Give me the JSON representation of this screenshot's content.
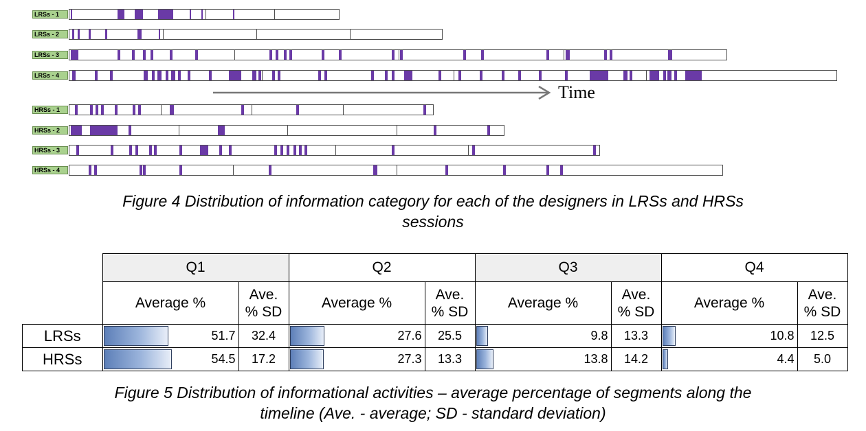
{
  "figure4": {
    "rows": [
      {
        "label": "LRSs - 1",
        "length": 394,
        "dividers": [
          70,
          102,
          198,
          298
        ],
        "marks": [
          [
            2,
            2
          ],
          [
            70,
            10
          ],
          [
            95,
            12
          ],
          [
            129,
            22
          ],
          [
            175,
            2
          ],
          [
            192,
            2
          ],
          [
            238,
            2
          ]
        ]
      },
      {
        "label": "LRSs - 2",
        "length": 544,
        "dividers": [
          136,
          272,
          408
        ],
        "marks": [
          [
            4,
            3
          ],
          [
            12,
            3
          ],
          [
            28,
            3
          ],
          [
            52,
            3
          ],
          [
            99,
            6
          ],
          [
            130,
            2
          ]
        ]
      },
      {
        "label": "LRSs - 3",
        "length": 958,
        "dividers": [
          240,
          479,
          719
        ],
        "marks": [
          [
            2,
            11
          ],
          [
            70,
            4
          ],
          [
            91,
            4
          ],
          [
            107,
            4
          ],
          [
            118,
            4
          ],
          [
            146,
            4
          ],
          [
            183,
            4
          ],
          [
            291,
            4
          ],
          [
            300,
            4
          ],
          [
            312,
            4
          ],
          [
            320,
            4
          ],
          [
            367,
            4
          ],
          [
            392,
            4
          ],
          [
            469,
            4
          ],
          [
            481,
            4
          ],
          [
            573,
            4
          ],
          [
            599,
            4
          ],
          [
            694,
            4
          ],
          [
            722,
            6
          ],
          [
            778,
            4
          ],
          [
            786,
            4
          ],
          [
            871,
            6
          ]
        ]
      },
      {
        "label": "LRSs - 4",
        "length": 1118,
        "dividers": [
          280,
          559,
          839
        ],
        "marks": [
          [
            4,
            5
          ],
          [
            37,
            4
          ],
          [
            59,
            4
          ],
          [
            108,
            6
          ],
          [
            120,
            4
          ],
          [
            128,
            6
          ],
          [
            140,
            4
          ],
          [
            148,
            6
          ],
          [
            158,
            4
          ],
          [
            172,
            4
          ],
          [
            203,
            4
          ],
          [
            232,
            18
          ],
          [
            266,
            6
          ],
          [
            275,
            4
          ],
          [
            295,
            4
          ],
          [
            303,
            4
          ],
          [
            362,
            4
          ],
          [
            371,
            4
          ],
          [
            439,
            4
          ],
          [
            459,
            4
          ],
          [
            469,
            4
          ],
          [
            487,
            6
          ],
          [
            493,
            6
          ],
          [
            537,
            4
          ],
          [
            566,
            4
          ],
          [
            597,
            4
          ],
          [
            629,
            4
          ],
          [
            653,
            4
          ],
          [
            683,
            4
          ],
          [
            721,
            4
          ],
          [
            757,
            27
          ],
          [
            806,
            6
          ],
          [
            815,
            4
          ],
          [
            844,
            14
          ],
          [
            864,
            4
          ],
          [
            870,
            6
          ],
          [
            880,
            4
          ],
          [
            896,
            24
          ]
        ]
      },
      {
        "label": "HRSs - 1",
        "length": 531,
        "dividers": [
          133,
          265,
          398
        ],
        "marks": [
          [
            8,
            4
          ],
          [
            30,
            4
          ],
          [
            38,
            4
          ],
          [
            46,
            4
          ],
          [
            66,
            4
          ],
          [
            92,
            4
          ],
          [
            100,
            4
          ],
          [
            146,
            6
          ],
          [
            250,
            4
          ],
          [
            330,
            4
          ],
          [
            515,
            4
          ]
        ]
      },
      {
        "label": "HRSs - 2",
        "length": 634,
        "dividers": [
          159,
          317,
          476
        ],
        "marks": [
          [
            2,
            16
          ],
          [
            30,
            40
          ],
          [
            86,
            4
          ],
          [
            216,
            10
          ],
          [
            530,
            4
          ],
          [
            608,
            4
          ]
        ]
      },
      {
        "label": "HRSs - 3",
        "length": 773,
        "dividers": [
          193,
          387,
          580
        ],
        "marks": [
          [
            10,
            4
          ],
          [
            60,
            4
          ],
          [
            87,
            4
          ],
          [
            96,
            4
          ],
          [
            116,
            4
          ],
          [
            123,
            4
          ],
          [
            160,
            4
          ],
          [
            190,
            12
          ],
          [
            218,
            4
          ],
          [
            232,
            4
          ],
          [
            298,
            4
          ],
          [
            307,
            4
          ],
          [
            316,
            4
          ],
          [
            326,
            4
          ],
          [
            334,
            4
          ],
          [
            342,
            4
          ],
          [
            469,
            4
          ],
          [
            586,
            4
          ],
          [
            762,
            4
          ]
        ]
      },
      {
        "label": "HRSs - 4",
        "length": 952,
        "dividers": [
          238,
          476,
          714
        ],
        "marks": [
          [
            28,
            4
          ],
          [
            36,
            4
          ],
          [
            102,
            4
          ],
          [
            107,
            4
          ],
          [
            160,
            4
          ],
          [
            290,
            4
          ],
          [
            442,
            6
          ],
          [
            547,
            4
          ],
          [
            631,
            4
          ],
          [
            694,
            4
          ],
          [
            714,
            4
          ]
        ]
      }
    ],
    "time_label": "Time",
    "caption_line1": "Figure 4 Distribution of information category for each of the designers in LRSs and HRSs",
    "caption_line2": "sessions"
  },
  "figure5": {
    "quarters": [
      "Q1",
      "Q2",
      "Q3",
      "Q4"
    ],
    "avg_header": "Average %",
    "sd_header_line1": "Ave.",
    "sd_header_line2": "% SD",
    "rows": [
      {
        "label": "LRSs",
        "avg": [
          "51.7",
          "27.6",
          "9.8",
          "10.8"
        ],
        "avg_fraction": [
          0.517,
          0.276,
          0.098,
          0.108
        ],
        "sd": [
          "32.4",
          "25.5",
          "13.3",
          "12.5"
        ]
      },
      {
        "label": "HRSs",
        "avg": [
          "54.5",
          "27.3",
          "13.8",
          "4.4"
        ],
        "avg_fraction": [
          0.545,
          0.273,
          0.138,
          0.044
        ],
        "sd": [
          "17.2",
          "13.3",
          "14.2",
          "5.0"
        ]
      }
    ],
    "caption_line1": "Figure 5 Distribution of informational activities – average percentage of segments along the",
    "caption_line2": "timeline (Ave. - average; SD - standard deviation)"
  },
  "colors": {
    "mark": "#6a3aa6",
    "label_bg": "#a9d18e",
    "bar_gradient_start": "#5d7fb8",
    "bar_gradient_end": "#e8eef8",
    "header_grey": "#efefef"
  }
}
